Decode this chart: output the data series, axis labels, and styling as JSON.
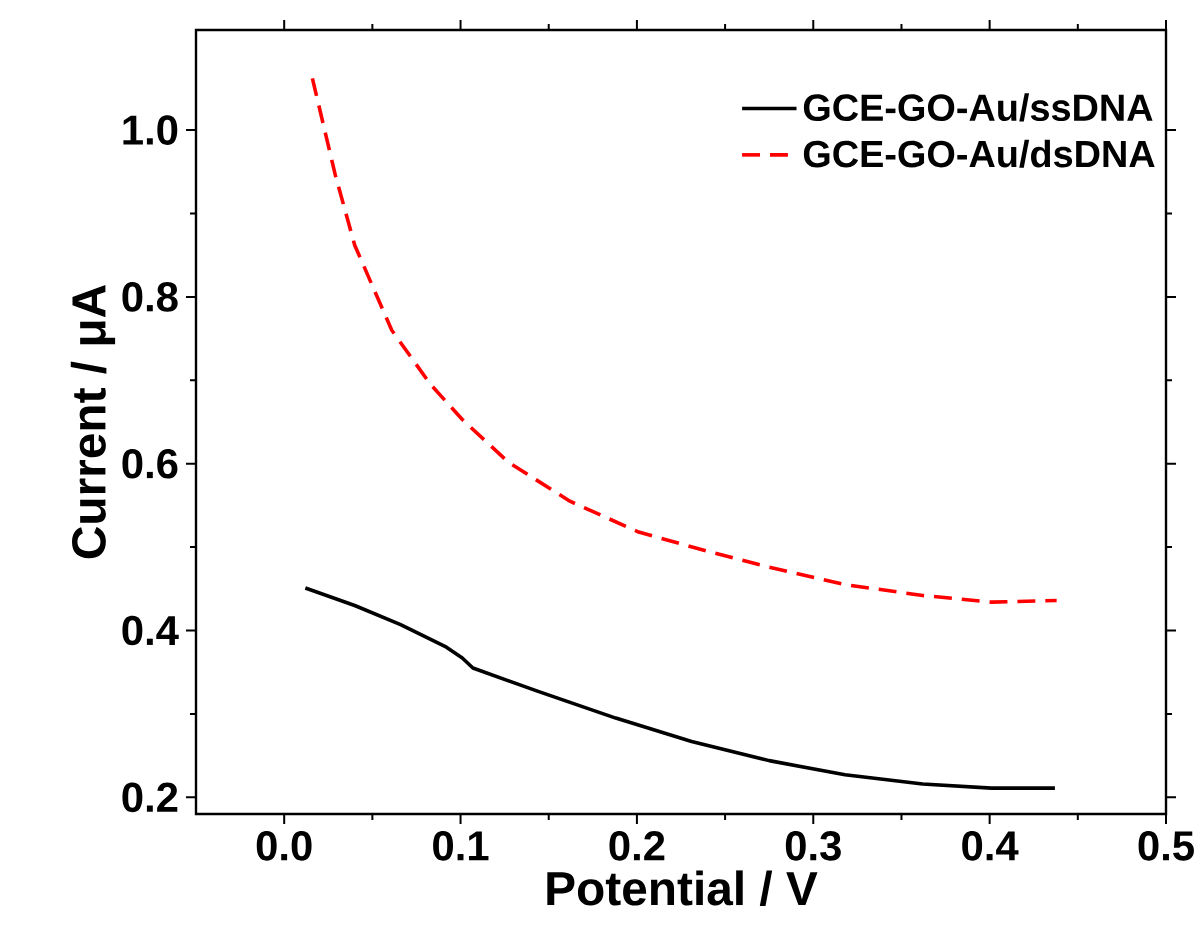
{
  "chart_data": {
    "type": "line",
    "xlabel": "Potential / V",
    "ylabel": "Current / μA",
    "xlim": [
      -0.05,
      0.5
    ],
    "ylim": [
      0.18,
      1.12
    ],
    "xticks": [
      {
        "value": 0,
        "label": "0.0"
      },
      {
        "value": 0.1,
        "label": "0.1"
      },
      {
        "value": 0.2,
        "label": "0.2"
      },
      {
        "value": 0.3,
        "label": "0.3"
      },
      {
        "value": 0.4,
        "label": "0.4"
      },
      {
        "value": 0.5,
        "label": "0.5"
      }
    ],
    "yticks": [
      {
        "value": 0.2,
        "label": "0.2"
      },
      {
        "value": 0.4,
        "label": "0.4"
      },
      {
        "value": 0.6,
        "label": "0.6"
      },
      {
        "value": 0.8,
        "label": "0.8"
      },
      {
        "value": 1,
        "label": "1.0"
      }
    ],
    "legend": "top right",
    "grid": false,
    "series": [
      {
        "name": "GCE-GO-Au/ssDNA",
        "color": "#000000",
        "line_style": "solid",
        "x": [
          0.012,
          0.04,
          0.066,
          0.092,
          0.101,
          0.107,
          0.144,
          0.188,
          0.231,
          0.275,
          0.318,
          0.362,
          0.401,
          0.437
        ],
        "values": [
          0.451,
          0.43,
          0.407,
          0.38,
          0.367,
          0.355,
          0.327,
          0.295,
          0.267,
          0.244,
          0.227,
          0.216,
          0.211,
          0.211
        ]
      },
      {
        "name": "GCE-GO-Au/dsDNA",
        "color": "#ff0000",
        "line_style": "dashed",
        "x": [
          0.016,
          0.029,
          0.04,
          0.061,
          0.083,
          0.101,
          0.127,
          0.162,
          0.201,
          0.24,
          0.275,
          0.318,
          0.362,
          0.401,
          0.438
        ],
        "values": [
          1.062,
          0.946,
          0.862,
          0.76,
          0.695,
          0.653,
          0.602,
          0.555,
          0.518,
          0.495,
          0.476,
          0.455,
          0.442,
          0.434,
          0.436
        ]
      }
    ]
  }
}
